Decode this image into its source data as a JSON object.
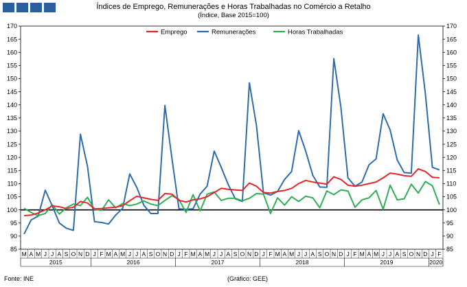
{
  "header": {
    "title": "Índices de Emprego, Remunerações e Horas Trabalhadas no Comércio a Retalho",
    "subtitle": "(Índice, Base 2015=100)"
  },
  "footer": {
    "source": "Fonte: INE",
    "credit": "(Gráfico: GEE)"
  },
  "colors": {
    "emprego": "#e3262a",
    "remuneracoes": "#2d6ca8",
    "horas": "#2fae56",
    "logo": "#2a5f9e"
  },
  "chart_data": {
    "type": "line",
    "ylim": [
      85,
      170
    ],
    "ytick_step": 5,
    "grid": false,
    "reference_line": 100,
    "legend_position": "top-center",
    "x": [
      "M",
      "A",
      "M",
      "J",
      "J",
      "A",
      "S",
      "O",
      "N",
      "D",
      "J",
      "F",
      "M",
      "A",
      "M",
      "J",
      "J",
      "A",
      "S",
      "O",
      "N",
      "D",
      "J",
      "F",
      "M",
      "A",
      "M",
      "J",
      "J",
      "A",
      "S",
      "O",
      "N",
      "D",
      "J",
      "F",
      "M",
      "A",
      "M",
      "J",
      "J",
      "A",
      "S",
      "O",
      "N",
      "D",
      "J",
      "F",
      "M",
      "A",
      "M",
      "J",
      "J",
      "A",
      "S",
      "O",
      "N",
      "D",
      "J",
      "F"
    ],
    "years": [
      {
        "label": "2015",
        "start": 0,
        "end": 9
      },
      {
        "label": "2016",
        "start": 10,
        "end": 21
      },
      {
        "label": "2017",
        "start": 22,
        "end": 33
      },
      {
        "label": "2018",
        "start": 34,
        "end": 45
      },
      {
        "label": "2019",
        "start": 46,
        "end": 57
      },
      {
        "label": "2020",
        "start": 58,
        "end": 59
      }
    ],
    "series": [
      {
        "name": "Emprego",
        "color": "#e3262a",
        "values": [
          97.8,
          98.0,
          98.8,
          100.0,
          101.5,
          101.2,
          100.5,
          101.0,
          103.2,
          102.6,
          100.4,
          100.5,
          100.8,
          101.0,
          101.6,
          103.5,
          105.2,
          104.6,
          104.0,
          103.6,
          106.2,
          106.0,
          103.6,
          103.0,
          103.8,
          104.2,
          105.0,
          106.6,
          108.2,
          107.8,
          107.6,
          107.4,
          110.2,
          109.0,
          106.6,
          106.4,
          107.0,
          107.4,
          108.2,
          110.0,
          111.2,
          110.6,
          110.2,
          109.8,
          112.6,
          111.6,
          109.4,
          109.0,
          109.4,
          110.0,
          110.6,
          112.2,
          114.0,
          113.6,
          113.0,
          112.8,
          115.6,
          114.6,
          112.4,
          112.2
        ]
      },
      {
        "name": "Remunerações",
        "color": "#2d6ca8",
        "values": [
          90.8,
          96.2,
          97.6,
          107.5,
          101.5,
          95.0,
          93.0,
          92.2,
          128.8,
          116.6,
          95.5,
          95.2,
          94.6,
          98.0,
          100.6,
          113.7,
          108.6,
          101.8,
          98.6,
          98.6,
          139.8,
          119.5,
          100.4,
          100.2,
          100.4,
          106.0,
          109.0,
          122.4,
          116.2,
          109.6,
          104.2,
          103.2,
          148.4,
          132.2,
          106.5,
          105.6,
          107.0,
          111.6,
          114.6,
          130.2,
          122.4,
          113.2,
          108.7,
          108.6,
          157.6,
          139.0,
          112.2,
          109.0,
          110.6,
          117.2,
          119.4,
          136.6,
          130.4,
          119.0,
          114.2,
          114.0,
          166.6,
          144.2,
          116.2,
          115.2
        ]
      },
      {
        "name": "Horas Trabalhadas",
        "color": "#2fae56",
        "values": [
          100.6,
          99.0,
          97.8,
          98.6,
          102.0,
          98.4,
          100.8,
          102.2,
          101.6,
          104.8,
          100.2,
          99.8,
          103.8,
          100.8,
          102.4,
          101.6,
          102.2,
          103.4,
          102.2,
          101.6,
          103.6,
          105.4,
          104.0,
          99.0,
          105.8,
          99.6,
          106.0,
          106.8,
          103.6,
          104.4,
          104.4,
          103.4,
          104.4,
          106.2,
          106.0,
          98.6,
          104.6,
          101.8,
          105.0,
          103.2,
          105.2,
          104.6,
          100.8,
          107.2,
          105.8,
          107.6,
          107.2,
          101.0,
          103.8,
          104.6,
          107.4,
          100.2,
          109.4,
          103.8,
          104.2,
          109.8,
          106.4,
          110.8,
          109.2,
          102.0
        ]
      }
    ]
  }
}
